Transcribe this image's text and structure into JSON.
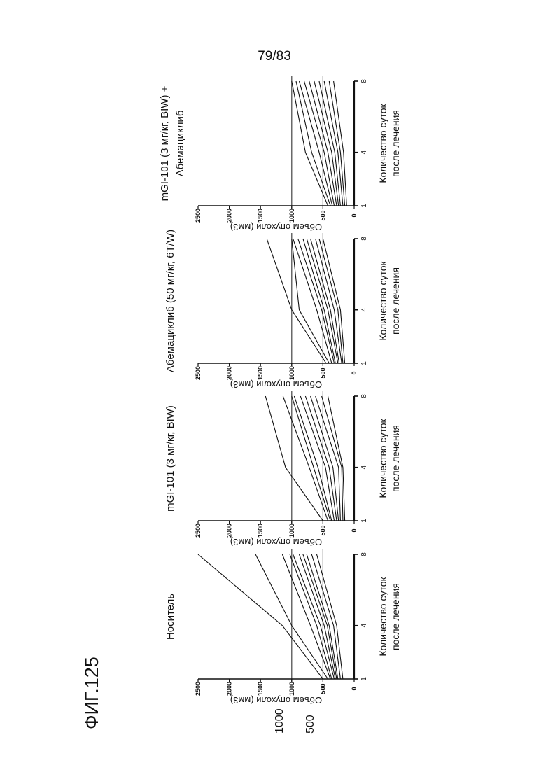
{
  "page_number": "79/83",
  "figure_label": "ФИГ.125",
  "annotations": {
    "ref_1000": "1000",
    "ref_500": "500"
  },
  "colors": {
    "line": "#111111",
    "ref_line": "#444444"
  },
  "chart_data": [
    {
      "type": "line",
      "title": "Носитель",
      "title_line2": "",
      "ylabel": "Объем опухоли (мм3)",
      "xlabel_line1": "Количество суток",
      "xlabel_line2": "после лечения",
      "x_ticks": [
        "1",
        "4",
        "8"
      ],
      "y_ticks": [
        "0",
        "500",
        "1000",
        "1500",
        "2000",
        "2500"
      ],
      "ylim": [
        0,
        2500
      ],
      "reference_lines": [
        500,
        1000
      ],
      "x": [
        1,
        4,
        8
      ],
      "series": [
        {
          "values": [
            500,
            1150,
            2500
          ]
        },
        {
          "values": [
            420,
            1000,
            1580
          ]
        },
        {
          "values": [
            380,
            700,
            1150
          ]
        },
        {
          "values": [
            360,
            600,
            1030
          ]
        },
        {
          "values": [
            320,
            540,
            980
          ]
        },
        {
          "values": [
            300,
            480,
            880
          ]
        },
        {
          "values": [
            280,
            430,
            820
          ]
        },
        {
          "values": [
            260,
            400,
            760
          ]
        },
        {
          "values": [
            220,
            330,
            680
          ]
        },
        {
          "values": [
            180,
            280,
            600
          ]
        }
      ]
    },
    {
      "type": "line",
      "title": "mGI-101 (3 мг/кг, BIW)",
      "title_line2": "",
      "ylabel": "Объем опухоли (мм3)",
      "xlabel_line1": "Количество суток",
      "xlabel_line2": "после лечения",
      "x_ticks": [
        "1",
        "4",
        "8"
      ],
      "y_ticks": [
        "0",
        "500",
        "1000",
        "1500",
        "2000",
        "2500"
      ],
      "ylim": [
        0,
        2500
      ],
      "reference_lines": [
        500,
        1000
      ],
      "x": [
        1,
        4,
        8
      ],
      "series": [
        {
          "values": [
            500,
            1100,
            1420
          ]
        },
        {
          "values": [
            420,
            720,
            1140
          ]
        },
        {
          "values": [
            380,
            650,
            1000
          ]
        },
        {
          "values": [
            360,
            580,
            960
          ]
        },
        {
          "values": [
            320,
            460,
            860
          ]
        },
        {
          "values": [
            280,
            400,
            780
          ]
        },
        {
          "values": [
            250,
            340,
            700
          ]
        },
        {
          "values": [
            220,
            250,
            620
          ]
        },
        {
          "values": [
            180,
            200,
            520
          ]
        },
        {
          "values": [
            150,
            180,
            420
          ]
        }
      ]
    },
    {
      "type": "line",
      "title": "Абемациклиб (50 мг/кг, 6T/W)",
      "title_line2": "",
      "ylabel": "Объем опухоли (мм3)",
      "xlabel_line1": "Количество суток",
      "xlabel_line2": "после лечения",
      "x_ticks": [
        "1",
        "4",
        "8"
      ],
      "y_ticks": [
        "0",
        "500",
        "1000",
        "1500",
        "2000",
        "2500"
      ],
      "ylim": [
        0,
        2500
      ],
      "reference_lines": [
        500,
        1000
      ],
      "x": [
        1,
        4,
        8
      ],
      "series": [
        {
          "values": [
            450,
            1000,
            1400
          ]
        },
        {
          "values": [
            400,
            880,
            1000
          ]
        },
        {
          "values": [
            360,
            600,
            980
          ]
        },
        {
          "values": [
            320,
            520,
            900
          ]
        },
        {
          "values": [
            300,
            480,
            820
          ]
        },
        {
          "values": [
            260,
            420,
            760
          ]
        },
        {
          "values": [
            240,
            380,
            700
          ]
        },
        {
          "values": [
            200,
            320,
            620
          ]
        },
        {
          "values": [
            180,
            260,
            560
          ]
        },
        {
          "values": [
            150,
            220,
            500
          ]
        }
      ]
    },
    {
      "type": "line",
      "title": "mGI-101 (3 мг/кг, BIW) +",
      "title_line2": "Абемациклиб",
      "ylabel": "Объем опухоли (мм3)",
      "xlabel_line1": "Количество суток",
      "xlabel_line2": "после лечения",
      "x_ticks": [
        "1",
        "4",
        "8"
      ],
      "y_ticks": [
        "0",
        "500",
        "1000",
        "1500",
        "2000",
        "2500"
      ],
      "ylim": [
        0,
        2500
      ],
      "reference_lines": [
        500,
        1000
      ],
      "x": [
        1,
        4,
        8
      ],
      "series": [
        {
          "values": [
            420,
            780,
            1000
          ]
        },
        {
          "values": [
            380,
            680,
            930
          ]
        },
        {
          "values": [
            350,
            560,
            880
          ]
        },
        {
          "values": [
            320,
            480,
            800
          ]
        },
        {
          "values": [
            280,
            420,
            720
          ]
        },
        {
          "values": [
            250,
            360,
            640
          ]
        },
        {
          "values": [
            220,
            310,
            560
          ]
        },
        {
          "values": [
            180,
            260,
            480
          ]
        },
        {
          "values": [
            150,
            220,
            400
          ]
        },
        {
          "values": [
            120,
            170,
            330
          ]
        }
      ]
    }
  ]
}
